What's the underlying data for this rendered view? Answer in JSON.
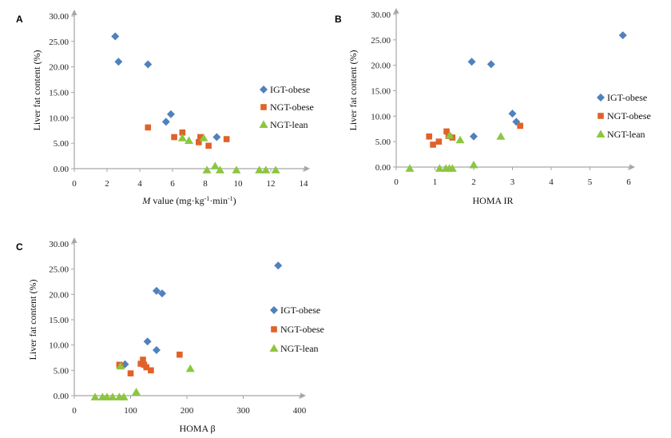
{
  "colors": {
    "IGT-obese": "#4f81bd",
    "NGT-obese": "#e0622a",
    "NGT-lean": "#8cc63f",
    "axis": "#a6a6a6"
  },
  "marker_shapes": {
    "IGT-obese": "diamond",
    "NGT-obese": "square",
    "NGT-lean": "triangle"
  },
  "chart_data": [
    {
      "type": "scatter",
      "panel": "A",
      "xlabel_italic": "M",
      "xlabel_rest": " value (mg·kg",
      "xlabel_sup1": "-1",
      "xlabel_mid": "·min",
      "xlabel_sup2": "-1",
      "xlabel_end": ")",
      "ylabel": "Liver fat content (%)",
      "xlim": [
        0,
        14
      ],
      "ylim": [
        0,
        30
      ],
      "xticks": [
        "0",
        "2",
        "4",
        "6",
        "8",
        "10",
        "12",
        "14"
      ],
      "yticks": [
        "0.00",
        "5.00",
        "10.00",
        "15.00",
        "20.00",
        "25.00",
        "30.00"
      ],
      "legend": "right",
      "series": [
        {
          "name": "IGT-obese",
          "x": [
            2.5,
            2.7,
            4.5,
            5.9,
            5.6,
            8.7
          ],
          "y": [
            26.0,
            21.0,
            20.5,
            10.7,
            9.2,
            6.2
          ]
        },
        {
          "name": "NGT-obese",
          "x": [
            4.5,
            6.1,
            6.6,
            7.6,
            7.7,
            8.2,
            9.3
          ],
          "y": [
            8.1,
            6.2,
            7.1,
            5.2,
            6.2,
            4.5,
            5.8
          ]
        },
        {
          "name": "NGT-lean",
          "x": [
            6.6,
            7.0,
            7.9,
            8.1,
            8.6,
            8.9,
            9.9,
            11.3,
            11.7,
            12.3
          ],
          "y": [
            6.0,
            5.5,
            6.0,
            -0.3,
            0.5,
            -0.3,
            -0.3,
            -0.3,
            -0.3,
            -0.3
          ]
        }
      ]
    },
    {
      "type": "scatter",
      "panel": "B",
      "xlabel": "HOMA IR",
      "ylabel": "Liver fat content (%)",
      "xlim": [
        0,
        6
      ],
      "ylim": [
        0,
        30
      ],
      "xticks": [
        "0",
        "1",
        "2",
        "3",
        "4",
        "5",
        "6"
      ],
      "yticks": [
        "0.00",
        "5.00",
        "10.00",
        "15.00",
        "20.00",
        "25.00",
        "30.00"
      ],
      "legend": "right",
      "series": [
        {
          "name": "IGT-obese",
          "x": [
            5.85,
            1.95,
            2.45,
            3.0,
            3.1,
            2.0
          ],
          "y": [
            25.9,
            20.7,
            20.2,
            10.5,
            8.9,
            6.0
          ]
        },
        {
          "name": "NGT-obese",
          "x": [
            0.85,
            0.95,
            1.1,
            1.3,
            1.35,
            1.45,
            3.2
          ],
          "y": [
            6.0,
            4.4,
            5.0,
            7.0,
            6.1,
            5.8,
            8.1
          ]
        },
        {
          "name": "NGT-lean",
          "x": [
            0.35,
            1.12,
            1.28,
            1.37,
            1.45,
            1.65,
            2.0,
            2.7,
            1.38
          ],
          "y": [
            -0.3,
            -0.3,
            -0.3,
            -0.3,
            -0.3,
            5.3,
            0.4,
            6.0,
            6.2
          ]
        }
      ]
    },
    {
      "type": "scatter",
      "panel": "C",
      "xlabel": "HOMA β",
      "ylabel": "Liver fat content (%)",
      "xlim": [
        0,
        400
      ],
      "ylim": [
        0,
        30
      ],
      "xticks": [
        "0",
        "100",
        "200",
        "300",
        "400"
      ],
      "yticks": [
        "0.00",
        "5.00",
        "10.00",
        "15.00",
        "20.00",
        "25.00",
        "30.00"
      ],
      "legend": "right",
      "series": [
        {
          "name": "IGT-obese",
          "x": [
            362,
            146,
            156,
            130,
            146,
            90
          ],
          "y": [
            25.7,
            20.7,
            20.2,
            10.7,
            9.0,
            6.2
          ]
        },
        {
          "name": "NGT-obese",
          "x": [
            80,
            83,
            100,
            118,
            124,
            122,
            128,
            136,
            187
          ],
          "y": [
            6.1,
            5.9,
            4.4,
            6.3,
            6.1,
            7.1,
            5.6,
            5.0,
            8.1
          ]
        },
        {
          "name": "NGT-lean",
          "x": [
            37,
            50,
            58,
            68,
            80,
            88,
            110,
            206,
            82
          ],
          "y": [
            -0.3,
            -0.3,
            -0.3,
            -0.3,
            -0.3,
            -0.3,
            0.7,
            5.3,
            5.8
          ]
        }
      ]
    }
  ]
}
